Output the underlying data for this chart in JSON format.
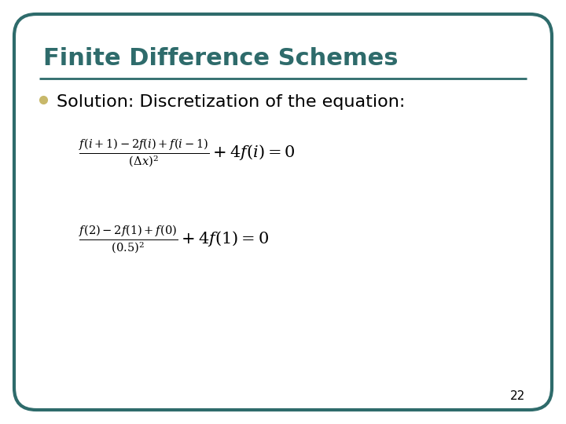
{
  "title": "Finite Difference Schemes",
  "title_color": "#2E6B6B",
  "title_fontsize": 22,
  "bullet_text": "Solution: Discretization of the equation:",
  "bullet_color": "#C8B86A",
  "text_color": "#000000",
  "body_fontsize": 16,
  "eq_fontsize": 15,
  "slide_number": "22",
  "background_color": "#FFFFFF",
  "border_color": "#2E6B6B",
  "line_color": "#2E6B6B",
  "slide_number_color": "#000000",
  "slide_number_fontsize": 11
}
